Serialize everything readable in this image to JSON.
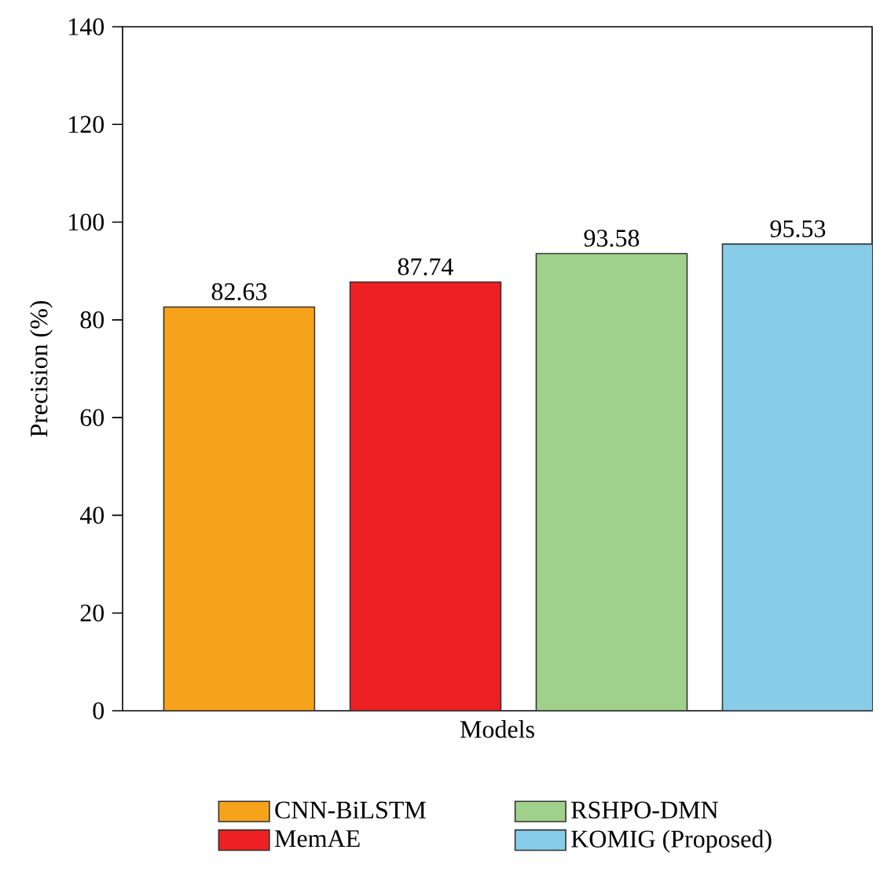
{
  "chart_data": {
    "type": "bar",
    "xlabel": "Models",
    "ylabel": "Precision (%)",
    "categories": [
      null
    ],
    "series": [
      {
        "name": "CNN-BiLSTM",
        "color": "#f7a21b",
        "values": [
          82.63
        ]
      },
      {
        "name": "MemAE",
        "color": "#ee2024",
        "values": [
          87.74
        ]
      },
      {
        "name": "RSHPO-DMN",
        "color": "#9fd18a",
        "values": [
          93.58
        ]
      },
      {
        "name": "KOMIG (Proposed)",
        "color": "#87cdea",
        "values": [
          95.53
        ]
      }
    ],
    "ylim": [
      0,
      140
    ],
    "yticks": [
      0,
      20,
      40,
      60,
      80,
      100,
      120,
      140
    ],
    "data_labels": true,
    "legend": "bottom"
  }
}
